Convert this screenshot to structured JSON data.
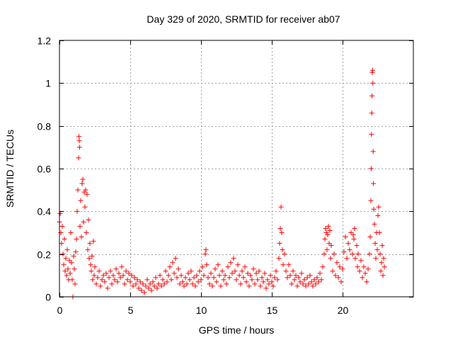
{
  "chart_data": {
    "type": "scatter",
    "title": "Day 329 of 2020, SRMTID for receiver ab07",
    "xlabel": "GPS time / hours",
    "ylabel": "SRMTID / TECUs",
    "xlim": [
      0,
      25
    ],
    "ylim": [
      0,
      1.2
    ],
    "xticks": [
      0,
      5,
      10,
      15,
      20
    ],
    "yticks": [
      0,
      0.2,
      0.4,
      0.6,
      0.8,
      1,
      1.2
    ],
    "ytick_labels": [
      "0",
      "0.2",
      "0.4",
      "0.6",
      "0.8",
      "1",
      "1.2"
    ],
    "grid": true,
    "marker": "+",
    "color": "#ff0000",
    "series": [
      {
        "name": "SRMTID",
        "points": [
          [
            0.0,
            0.35
          ],
          [
            0.05,
            0.39
          ],
          [
            0.1,
            0.3
          ],
          [
            0.15,
            0.25
          ],
          [
            0.2,
            0.33
          ],
          [
            0.25,
            0.2
          ],
          [
            0.3,
            0.15
          ],
          [
            0.35,
            0.27
          ],
          [
            0.4,
            0.12
          ],
          [
            0.45,
            0.18
          ],
          [
            0.5,
            0.1
          ],
          [
            0.55,
            0.22
          ],
          [
            0.6,
            0.13
          ],
          [
            0.65,
            0.08
          ],
          [
            0.7,
            0.17
          ],
          [
            0.75,
            0.11
          ],
          [
            0.8,
            0.3
          ],
          [
            0.85,
            0.16
          ],
          [
            0.9,
            0.08
          ],
          [
            0.95,
            0.0
          ],
          [
            1.0,
            0.19
          ],
          [
            1.05,
            0.13
          ],
          [
            1.1,
            0.06
          ],
          [
            1.15,
            0.21
          ],
          [
            1.2,
            0.27
          ],
          [
            1.25,
            0.4
          ],
          [
            1.3,
            0.5
          ],
          [
            1.35,
            0.65
          ],
          [
            1.38,
            0.75
          ],
          [
            1.4,
            0.73
          ],
          [
            1.42,
            0.7
          ],
          [
            1.45,
            0.33
          ],
          [
            1.5,
            0.45
          ],
          [
            1.55,
            0.28
          ],
          [
            1.6,
            0.53
          ],
          [
            1.65,
            0.55
          ],
          [
            1.7,
            0.35
          ],
          [
            1.75,
            0.49
          ],
          [
            1.8,
            0.42
          ],
          [
            1.85,
            0.5
          ],
          [
            1.9,
            0.3
          ],
          [
            1.95,
            0.48
          ],
          [
            2.0,
            0.22
          ],
          [
            2.05,
            0.36
          ],
          [
            2.1,
            0.18
          ],
          [
            2.15,
            0.25
          ],
          [
            2.2,
            0.15
          ],
          [
            2.25,
            0.12
          ],
          [
            2.3,
            0.19
          ],
          [
            2.35,
            0.08
          ],
          [
            2.4,
            0.26
          ],
          [
            2.45,
            0.1
          ],
          [
            2.5,
            0.14
          ],
          [
            2.6,
            0.06
          ],
          [
            2.7,
            0.09
          ],
          [
            2.8,
            0.12
          ],
          [
            2.9,
            0.05
          ],
          [
            3.0,
            0.08
          ],
          [
            3.1,
            0.1
          ],
          [
            3.2,
            0.07
          ],
          [
            3.3,
            0.11
          ],
          [
            3.4,
            0.04
          ],
          [
            3.5,
            0.09
          ],
          [
            3.6,
            0.12
          ],
          [
            3.7,
            0.06
          ],
          [
            3.8,
            0.1
          ],
          [
            3.9,
            0.08
          ],
          [
            4.0,
            0.13
          ],
          [
            4.1,
            0.07
          ],
          [
            4.2,
            0.11
          ],
          [
            4.3,
            0.09
          ],
          [
            4.4,
            0.14
          ],
          [
            4.5,
            0.1
          ],
          [
            4.6,
            0.06
          ],
          [
            4.7,
            0.12
          ],
          [
            4.8,
            0.08
          ],
          [
            4.9,
            0.11
          ],
          [
            5.0,
            0.07
          ],
          [
            5.1,
            0.1
          ],
          [
            5.2,
            0.05
          ],
          [
            5.3,
            0.09
          ],
          [
            5.4,
            0.06
          ],
          [
            5.5,
            0.08
          ],
          [
            5.6,
            0.04
          ],
          [
            5.7,
            0.07
          ],
          [
            5.8,
            0.03
          ],
          [
            5.9,
            0.06
          ],
          [
            6.0,
            0.02
          ],
          [
            6.1,
            0.05
          ],
          [
            6.2,
            0.08
          ],
          [
            6.3,
            0.04
          ],
          [
            6.4,
            0.06
          ],
          [
            6.5,
            0.03
          ],
          [
            6.6,
            0.07
          ],
          [
            6.7,
            0.05
          ],
          [
            6.8,
            0.09
          ],
          [
            6.9,
            0.04
          ],
          [
            7.0,
            0.06
          ],
          [
            7.1,
            0.1
          ],
          [
            7.2,
            0.05
          ],
          [
            7.3,
            0.08
          ],
          [
            7.4,
            0.06
          ],
          [
            7.5,
            0.12
          ],
          [
            7.6,
            0.07
          ],
          [
            7.7,
            0.1
          ],
          [
            7.8,
            0.14
          ],
          [
            7.9,
            0.08
          ],
          [
            8.0,
            0.16
          ],
          [
            8.1,
            0.11
          ],
          [
            8.2,
            0.18
          ],
          [
            8.3,
            0.09
          ],
          [
            8.4,
            0.13
          ],
          [
            8.5,
            0.06
          ],
          [
            8.6,
            0.1
          ],
          [
            8.7,
            0.07
          ],
          [
            8.8,
            0.05
          ],
          [
            8.9,
            0.09
          ],
          [
            9.0,
            0.06
          ],
          [
            9.1,
            0.11
          ],
          [
            9.2,
            0.08
          ],
          [
            9.3,
            0.12
          ],
          [
            9.4,
            0.06
          ],
          [
            9.5,
            0.09
          ],
          [
            9.6,
            0.05
          ],
          [
            9.7,
            0.1
          ],
          [
            9.8,
            0.07
          ],
          [
            9.9,
            0.12
          ],
          [
            10.0,
            0.08
          ],
          [
            10.1,
            0.14
          ],
          [
            10.2,
            0.1
          ],
          [
            10.3,
            0.2
          ],
          [
            10.35,
            0.22
          ],
          [
            10.4,
            0.15
          ],
          [
            10.5,
            0.09
          ],
          [
            10.6,
            0.06
          ],
          [
            10.7,
            0.11
          ],
          [
            10.8,
            0.05
          ],
          [
            10.9,
            0.09
          ],
          [
            11.0,
            0.13
          ],
          [
            11.1,
            0.07
          ],
          [
            11.2,
            0.15
          ],
          [
            11.3,
            0.1
          ],
          [
            11.4,
            0.05
          ],
          [
            11.5,
            0.12
          ],
          [
            11.6,
            0.08
          ],
          [
            11.7,
            0.1
          ],
          [
            11.8,
            0.06
          ],
          [
            11.9,
            0.14
          ],
          [
            12.0,
            0.09
          ],
          [
            12.1,
            0.16
          ],
          [
            12.2,
            0.11
          ],
          [
            12.3,
            0.18
          ],
          [
            12.4,
            0.12
          ],
          [
            12.5,
            0.08
          ],
          [
            12.6,
            0.15
          ],
          [
            12.7,
            0.1
          ],
          [
            12.8,
            0.06
          ],
          [
            12.9,
            0.12
          ],
          [
            13.0,
            0.09
          ],
          [
            13.1,
            0.14
          ],
          [
            13.2,
            0.07
          ],
          [
            13.3,
            0.11
          ],
          [
            13.4,
            0.05
          ],
          [
            13.5,
            0.1
          ],
          [
            13.6,
            0.08
          ],
          [
            13.7,
            0.13
          ],
          [
            13.8,
            0.06
          ],
          [
            13.9,
            0.11
          ],
          [
            14.0,
            0.08
          ],
          [
            14.1,
            0.12
          ],
          [
            14.2,
            0.05
          ],
          [
            14.3,
            0.09
          ],
          [
            14.4,
            0.07
          ],
          [
            14.5,
            0.11
          ],
          [
            14.6,
            0.04
          ],
          [
            14.7,
            0.08
          ],
          [
            14.8,
            0.06
          ],
          [
            14.9,
            0.1
          ],
          [
            15.0,
            0.07
          ],
          [
            15.1,
            0.05
          ],
          [
            15.2,
            0.09
          ],
          [
            15.3,
            0.12
          ],
          [
            15.4,
            0.08
          ],
          [
            15.5,
            0.18
          ],
          [
            15.55,
            0.25
          ],
          [
            15.6,
            0.32
          ],
          [
            15.65,
            0.42
          ],
          [
            15.7,
            0.3
          ],
          [
            15.75,
            0.22
          ],
          [
            15.8,
            0.15
          ],
          [
            15.9,
            0.2
          ],
          [
            16.0,
            0.12
          ],
          [
            16.1,
            0.09
          ],
          [
            16.2,
            0.15
          ],
          [
            16.3,
            0.1
          ],
          [
            16.4,
            0.06
          ],
          [
            16.5,
            0.12
          ],
          [
            16.6,
            0.08
          ],
          [
            16.7,
            0.1
          ],
          [
            16.8,
            0.05
          ],
          [
            16.9,
            0.09
          ],
          [
            17.0,
            0.07
          ],
          [
            17.1,
            0.11
          ],
          [
            17.2,
            0.06
          ],
          [
            17.3,
            0.08
          ],
          [
            17.4,
            0.05
          ],
          [
            17.5,
            0.09
          ],
          [
            17.6,
            0.06
          ],
          [
            17.7,
            0.1
          ],
          [
            17.8,
            0.07
          ],
          [
            17.9,
            0.05
          ],
          [
            18.0,
            0.08
          ],
          [
            18.1,
            0.06
          ],
          [
            18.2,
            0.09
          ],
          [
            18.3,
            0.07
          ],
          [
            18.4,
            0.11
          ],
          [
            18.5,
            0.08
          ],
          [
            18.6,
            0.14
          ],
          [
            18.7,
            0.2
          ],
          [
            18.75,
            0.27
          ],
          [
            18.8,
            0.32
          ],
          [
            18.85,
            0.3
          ],
          [
            18.9,
            0.22
          ],
          [
            18.95,
            0.29
          ],
          [
            19.0,
            0.33
          ],
          [
            19.05,
            0.25
          ],
          [
            19.1,
            0.31
          ],
          [
            19.15,
            0.18
          ],
          [
            19.2,
            0.24
          ],
          [
            19.3,
            0.12
          ],
          [
            19.4,
            0.2
          ],
          [
            19.5,
            0.1
          ],
          [
            19.6,
            0.16
          ],
          [
            19.7,
            0.09
          ],
          [
            19.8,
            0.14
          ],
          [
            19.9,
            0.07
          ],
          [
            20.0,
            0.13
          ],
          [
            20.1,
            0.21
          ],
          [
            20.2,
            0.28
          ],
          [
            20.3,
            0.18
          ],
          [
            20.4,
            0.25
          ],
          [
            20.5,
            0.22
          ],
          [
            20.6,
            0.3
          ],
          [
            20.7,
            0.2
          ],
          [
            20.75,
            0.29
          ],
          [
            20.8,
            0.27
          ],
          [
            20.85,
            0.32
          ],
          [
            20.9,
            0.18
          ],
          [
            21.0,
            0.24
          ],
          [
            21.05,
            0.14
          ],
          [
            21.1,
            0.2
          ],
          [
            21.2,
            0.12
          ],
          [
            21.3,
            0.17
          ],
          [
            21.4,
            0.09
          ],
          [
            21.5,
            0.14
          ],
          [
            21.6,
            0.11
          ],
          [
            21.7,
            0.07
          ],
          [
            21.8,
            0.13
          ],
          [
            21.9,
            0.2
          ],
          [
            21.95,
            0.28
          ],
          [
            22.0,
            0.45
          ],
          [
            22.02,
            0.6
          ],
          [
            22.04,
            0.76
          ],
          [
            22.06,
            0.86
          ],
          [
            22.08,
            0.94
          ],
          [
            22.1,
            1.05
          ],
          [
            22.12,
            1.06
          ],
          [
            22.14,
            1.0
          ],
          [
            22.16,
            0.68
          ],
          [
            22.18,
            0.53
          ],
          [
            22.2,
            0.41
          ],
          [
            22.25,
            0.34
          ],
          [
            22.3,
            0.25
          ],
          [
            22.35,
            0.18
          ],
          [
            22.4,
            0.3
          ],
          [
            22.45,
            0.22
          ],
          [
            22.5,
            0.38
          ],
          [
            22.55,
            0.42
          ],
          [
            22.6,
            0.3
          ],
          [
            22.65,
            0.2
          ],
          [
            22.7,
            0.12
          ],
          [
            22.75,
            0.16
          ],
          [
            22.8,
            0.24
          ],
          [
            22.85,
            0.1
          ],
          [
            22.9,
            0.18
          ],
          [
            22.95,
            0.14
          ]
        ]
      }
    ]
  }
}
